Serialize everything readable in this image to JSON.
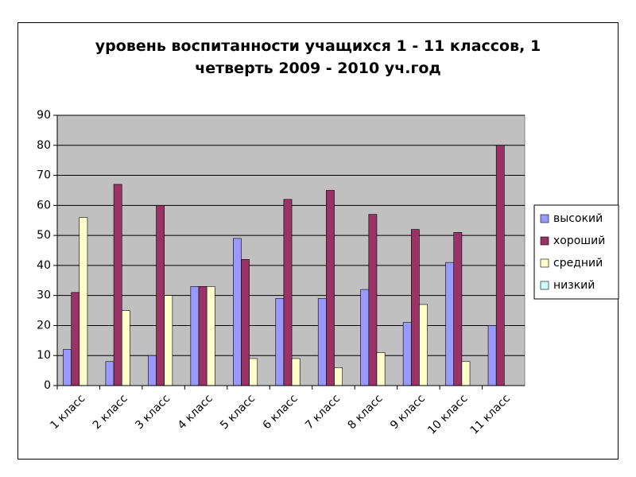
{
  "chart_data": {
    "type": "bar",
    "title": "уровень воспитанности учащихся 1 - 11 классов, 1 четверть 2009 - 2010 уч.год",
    "categories": [
      "1 класс",
      "2 класс",
      "3 класс",
      "4 класс",
      "5 класс",
      "6 класс",
      "7 класс",
      "8 класс",
      "9 класс",
      "10 класс",
      "11 класс"
    ],
    "series": [
      {
        "name": "высокий",
        "color": "#9999ff",
        "values": [
          12,
          8,
          10,
          33,
          49,
          29,
          29,
          32,
          21,
          41,
          20
        ]
      },
      {
        "name": "хороший",
        "color": "#993366",
        "values": [
          31,
          67,
          60,
          33,
          42,
          62,
          65,
          57,
          52,
          51,
          80
        ]
      },
      {
        "name": "средний",
        "color": "#ffffcc",
        "values": [
          56,
          25,
          30,
          33,
          9,
          9,
          6,
          11,
          27,
          8,
          0
        ]
      },
      {
        "name": "низкий",
        "color": "#ccffff",
        "values": [
          0,
          0,
          0,
          0,
          0,
          0,
          0,
          0,
          0,
          0,
          0
        ]
      }
    ],
    "ylim": [
      0,
      90
    ],
    "yticks": [
      0,
      10,
      20,
      30,
      40,
      50,
      60,
      70,
      80,
      90
    ],
    "grid": true,
    "legend": "right"
  }
}
